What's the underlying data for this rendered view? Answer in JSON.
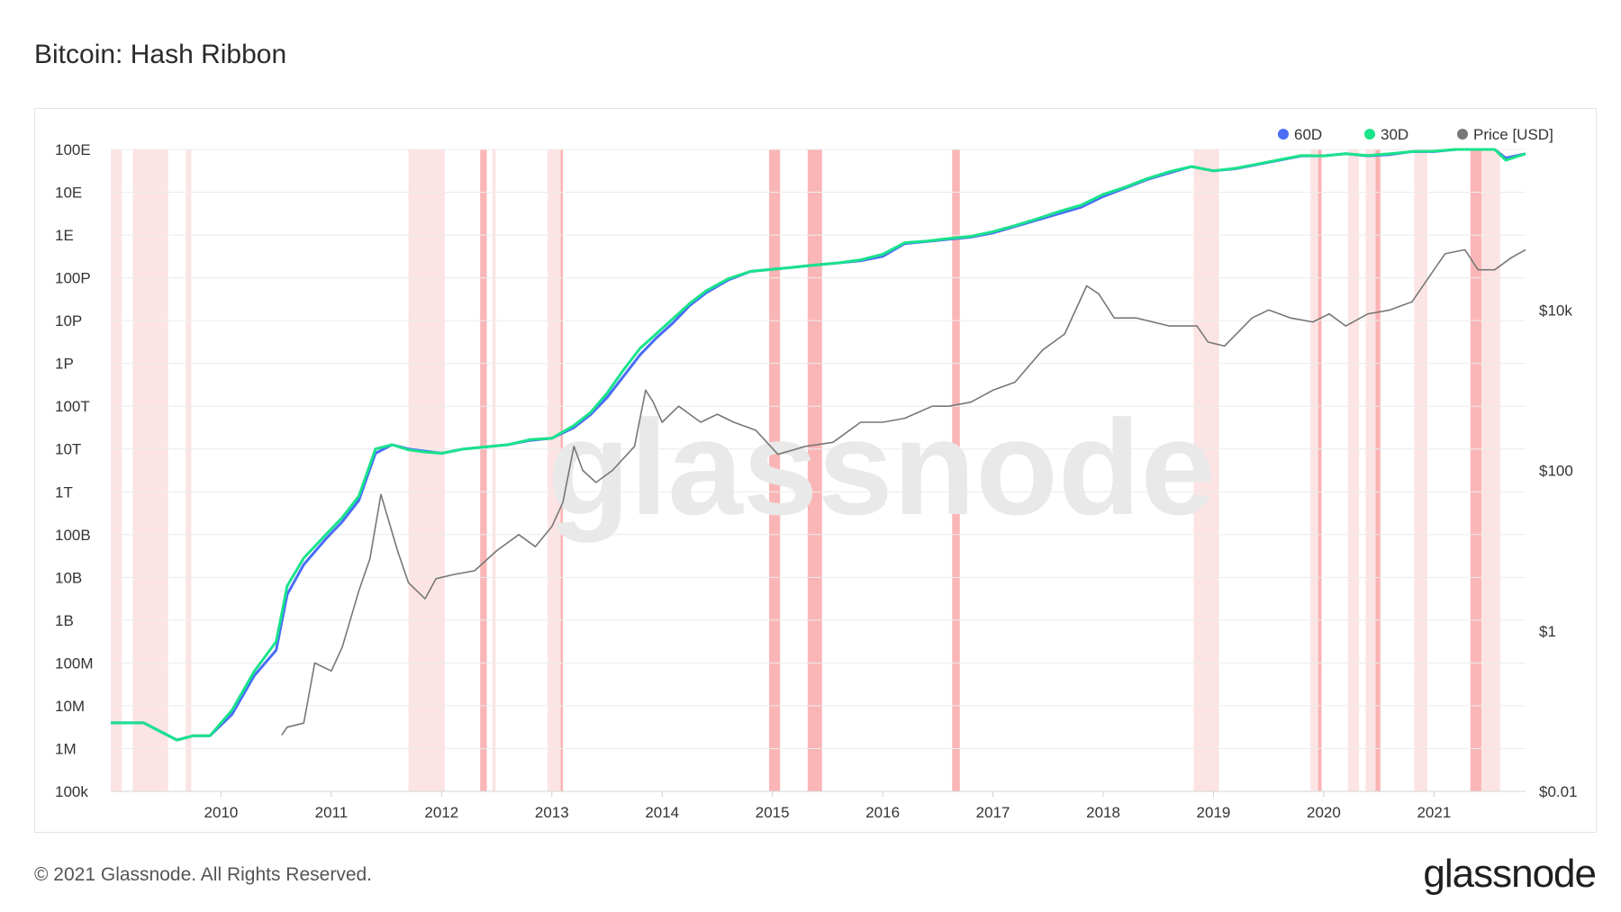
{
  "title": "Bitcoin: Hash Ribbon",
  "footer": {
    "copyright": "© 2021 Glassnode. All Rights Reserved.",
    "brand": "glassnode"
  },
  "watermark": "glassnode",
  "colors": {
    "ma60": "#4a6cf7",
    "ma30": "#19e38b",
    "price": "#777777",
    "band_light": "#fde1e1",
    "band_dark": "#f9a9a9",
    "grid": "#ececec"
  },
  "chart_data": {
    "type": "line",
    "title": "Bitcoin: Hash Ribbon",
    "x_range": [
      2009.0,
      2021.83
    ],
    "y_left": {
      "scale": "log",
      "unit": "hashes/s",
      "range_log10": [
        5,
        20
      ],
      "ticks": [
        {
          "label": "100E",
          "log10": 20
        },
        {
          "label": "10E",
          "log10": 19
        },
        {
          "label": "1E",
          "log10": 18
        },
        {
          "label": "100P",
          "log10": 17
        },
        {
          "label": "10P",
          "log10": 16
        },
        {
          "label": "1P",
          "log10": 15
        },
        {
          "label": "100T",
          "log10": 14
        },
        {
          "label": "10T",
          "log10": 13
        },
        {
          "label": "1T",
          "log10": 12
        },
        {
          "label": "100B",
          "log10": 11
        },
        {
          "label": "10B",
          "log10": 10
        },
        {
          "label": "1B",
          "log10": 9
        },
        {
          "label": "100M",
          "log10": 8
        },
        {
          "label": "10M",
          "log10": 7
        },
        {
          "label": "1M",
          "log10": 6
        },
        {
          "label": "100k",
          "log10": 5
        }
      ]
    },
    "y_right": {
      "scale": "log",
      "unit": "USD",
      "range_log10": [
        -2,
        6
      ],
      "ticks": [
        {
          "label": "$10k",
          "log10": 4
        },
        {
          "label": "$100",
          "log10": 2
        },
        {
          "label": "$1",
          "log10": 0
        },
        {
          "label": "$0.01",
          "log10": -2
        }
      ]
    },
    "x_ticks": [
      "2010",
      "2011",
      "2012",
      "2013",
      "2014",
      "2015",
      "2016",
      "2017",
      "2018",
      "2019",
      "2020",
      "2021"
    ],
    "legend": [
      {
        "name": "60D",
        "color": "#4a6cf7"
      },
      {
        "name": "30D",
        "color": "#19e38b"
      },
      {
        "name": "Price [USD]",
        "color": "#777777"
      }
    ],
    "series": [
      {
        "name": "60D",
        "axis": "left",
        "x": [
          2009.0,
          2009.15,
          2009.3,
          2009.45,
          2009.6,
          2009.75,
          2009.9,
          2010.1,
          2010.3,
          2010.5,
          2010.6,
          2010.75,
          2010.95,
          2011.1,
          2011.25,
          2011.4,
          2011.55,
          2011.7,
          2011.85,
          2012.0,
          2012.2,
          2012.4,
          2012.6,
          2012.8,
          2013.0,
          2013.2,
          2013.35,
          2013.5,
          2013.65,
          2013.8,
          2013.95,
          2014.1,
          2014.25,
          2014.4,
          2014.6,
          2014.8,
          2015.0,
          2015.2,
          2015.4,
          2015.6,
          2015.8,
          2016.0,
          2016.2,
          2016.4,
          2016.6,
          2016.8,
          2017.0,
          2017.2,
          2017.4,
          2017.6,
          2017.8,
          2018.0,
          2018.2,
          2018.4,
          2018.6,
          2018.8,
          2019.0,
          2019.2,
          2019.4,
          2019.6,
          2019.8,
          2020.0,
          2020.2,
          2020.4,
          2020.6,
          2020.8,
          2021.0,
          2021.2,
          2021.4,
          2021.55,
          2021.65,
          2021.83
        ],
        "log10": [
          6.6,
          6.6,
          6.6,
          6.4,
          6.2,
          6.3,
          6.3,
          6.8,
          7.7,
          8.3,
          9.6,
          10.3,
          10.9,
          11.3,
          11.8,
          12.9,
          13.1,
          13.0,
          12.95,
          12.9,
          13.0,
          13.05,
          13.1,
          13.2,
          13.25,
          13.5,
          13.8,
          14.2,
          14.7,
          15.2,
          15.6,
          15.95,
          16.35,
          16.65,
          16.95,
          17.15,
          17.2,
          17.25,
          17.3,
          17.35,
          17.4,
          17.5,
          17.8,
          17.85,
          17.9,
          17.95,
          18.05,
          18.2,
          18.35,
          18.5,
          18.65,
          18.9,
          19.1,
          19.3,
          19.45,
          19.6,
          19.5,
          19.55,
          19.65,
          19.75,
          19.85,
          19.85,
          19.9,
          19.85,
          19.88,
          19.95,
          19.95,
          20.0,
          20.0,
          20.0,
          19.8,
          19.9
        ]
      },
      {
        "name": "30D",
        "axis": "left",
        "x": [
          2009.0,
          2009.15,
          2009.3,
          2009.45,
          2009.6,
          2009.75,
          2009.9,
          2010.1,
          2010.3,
          2010.5,
          2010.6,
          2010.75,
          2010.95,
          2011.1,
          2011.25,
          2011.4,
          2011.55,
          2011.7,
          2011.85,
          2012.0,
          2012.2,
          2012.4,
          2012.6,
          2012.8,
          2013.0,
          2013.2,
          2013.35,
          2013.5,
          2013.65,
          2013.8,
          2013.95,
          2014.1,
          2014.25,
          2014.4,
          2014.6,
          2014.8,
          2015.0,
          2015.2,
          2015.4,
          2015.6,
          2015.8,
          2016.0,
          2016.2,
          2016.4,
          2016.6,
          2016.8,
          2017.0,
          2017.2,
          2017.4,
          2017.6,
          2017.8,
          2018.0,
          2018.2,
          2018.4,
          2018.6,
          2018.8,
          2019.0,
          2019.2,
          2019.4,
          2019.6,
          2019.8,
          2020.0,
          2020.2,
          2020.4,
          2020.6,
          2020.8,
          2021.0,
          2021.2,
          2021.4,
          2021.55,
          2021.65,
          2021.83
        ],
        "log10": [
          6.6,
          6.6,
          6.6,
          6.4,
          6.2,
          6.3,
          6.3,
          6.9,
          7.8,
          8.5,
          9.8,
          10.45,
          11.0,
          11.4,
          11.9,
          13.0,
          13.1,
          12.98,
          12.93,
          12.9,
          13.0,
          13.05,
          13.1,
          13.22,
          13.25,
          13.55,
          13.85,
          14.3,
          14.85,
          15.35,
          15.7,
          16.05,
          16.4,
          16.7,
          16.98,
          17.15,
          17.2,
          17.25,
          17.3,
          17.35,
          17.42,
          17.55,
          17.82,
          17.86,
          17.92,
          17.97,
          18.08,
          18.22,
          18.38,
          18.55,
          18.7,
          18.95,
          19.12,
          19.32,
          19.48,
          19.6,
          19.5,
          19.56,
          19.66,
          19.76,
          19.86,
          19.85,
          19.9,
          19.86,
          19.9,
          19.95,
          19.96,
          20.0,
          20.0,
          20.0,
          19.75,
          19.9
        ]
      },
      {
        "name": "Price [USD]",
        "axis": "right",
        "x": [
          2010.55,
          2010.6,
          2010.75,
          2010.85,
          2011.0,
          2011.1,
          2011.25,
          2011.35,
          2011.45,
          2011.6,
          2011.7,
          2011.85,
          2011.95,
          2012.1,
          2012.3,
          2012.5,
          2012.7,
          2012.85,
          2013.0,
          2013.1,
          2013.2,
          2013.28,
          2013.4,
          2013.55,
          2013.75,
          2013.85,
          2013.92,
          2014.0,
          2014.15,
          2014.35,
          2014.5,
          2014.65,
          2014.85,
          2015.05,
          2015.3,
          2015.55,
          2015.8,
          2016.0,
          2016.2,
          2016.45,
          2016.6,
          2016.8,
          2017.0,
          2017.2,
          2017.45,
          2017.65,
          2017.85,
          2017.96,
          2018.1,
          2018.3,
          2018.6,
          2018.85,
          2018.95,
          2019.1,
          2019.35,
          2019.5,
          2019.7,
          2019.9,
          2020.05,
          2020.2,
          2020.4,
          2020.6,
          2020.8,
          2020.95,
          2021.1,
          2021.28,
          2021.4,
          2021.55,
          2021.7,
          2021.83
        ],
        "log10": [
          -1.3,
          -1.2,
          -1.15,
          -0.4,
          -0.5,
          -0.2,
          0.5,
          0.9,
          1.7,
          1.0,
          0.6,
          0.4,
          0.65,
          0.7,
          0.75,
          1.0,
          1.2,
          1.05,
          1.3,
          1.6,
          2.3,
          2.0,
          1.85,
          2.0,
          2.3,
          3.0,
          2.85,
          2.6,
          2.8,
          2.6,
          2.7,
          2.6,
          2.5,
          2.2,
          2.3,
          2.35,
          2.6,
          2.6,
          2.65,
          2.8,
          2.8,
          2.85,
          3.0,
          3.1,
          3.5,
          3.7,
          4.3,
          4.2,
          3.9,
          3.9,
          3.8,
          3.8,
          3.6,
          3.55,
          3.9,
          4.0,
          3.9,
          3.85,
          3.95,
          3.8,
          3.95,
          4.0,
          4.1,
          4.4,
          4.7,
          4.75,
          4.5,
          4.5,
          4.65,
          4.75
        ]
      }
    ],
    "bands": [
      {
        "start": 2009.0,
        "end": 2009.1,
        "strength": "light"
      },
      {
        "start": 2009.2,
        "end": 2009.52,
        "strength": "light"
      },
      {
        "start": 2009.68,
        "end": 2009.73,
        "strength": "light"
      },
      {
        "start": 2011.7,
        "end": 2012.03,
        "strength": "light"
      },
      {
        "start": 2012.35,
        "end": 2012.41,
        "strength": "dark"
      },
      {
        "start": 2012.46,
        "end": 2012.49,
        "strength": "light"
      },
      {
        "start": 2012.96,
        "end": 2013.1,
        "strength": "light"
      },
      {
        "start": 2013.08,
        "end": 2013.1,
        "strength": "dark"
      },
      {
        "start": 2014.97,
        "end": 2015.07,
        "strength": "dark"
      },
      {
        "start": 2015.32,
        "end": 2015.45,
        "strength": "dark"
      },
      {
        "start": 2016.63,
        "end": 2016.7,
        "strength": "dark"
      },
      {
        "start": 2018.82,
        "end": 2019.05,
        "strength": "light"
      },
      {
        "start": 2019.88,
        "end": 2019.98,
        "strength": "light"
      },
      {
        "start": 2019.95,
        "end": 2019.98,
        "strength": "dark"
      },
      {
        "start": 2020.22,
        "end": 2020.32,
        "strength": "light"
      },
      {
        "start": 2020.38,
        "end": 2020.52,
        "strength": "light"
      },
      {
        "start": 2020.47,
        "end": 2020.51,
        "strength": "dark"
      },
      {
        "start": 2020.82,
        "end": 2020.94,
        "strength": "light"
      },
      {
        "start": 2021.33,
        "end": 2021.43,
        "strength": "dark"
      },
      {
        "start": 2021.43,
        "end": 2021.6,
        "strength": "light"
      }
    ]
  }
}
